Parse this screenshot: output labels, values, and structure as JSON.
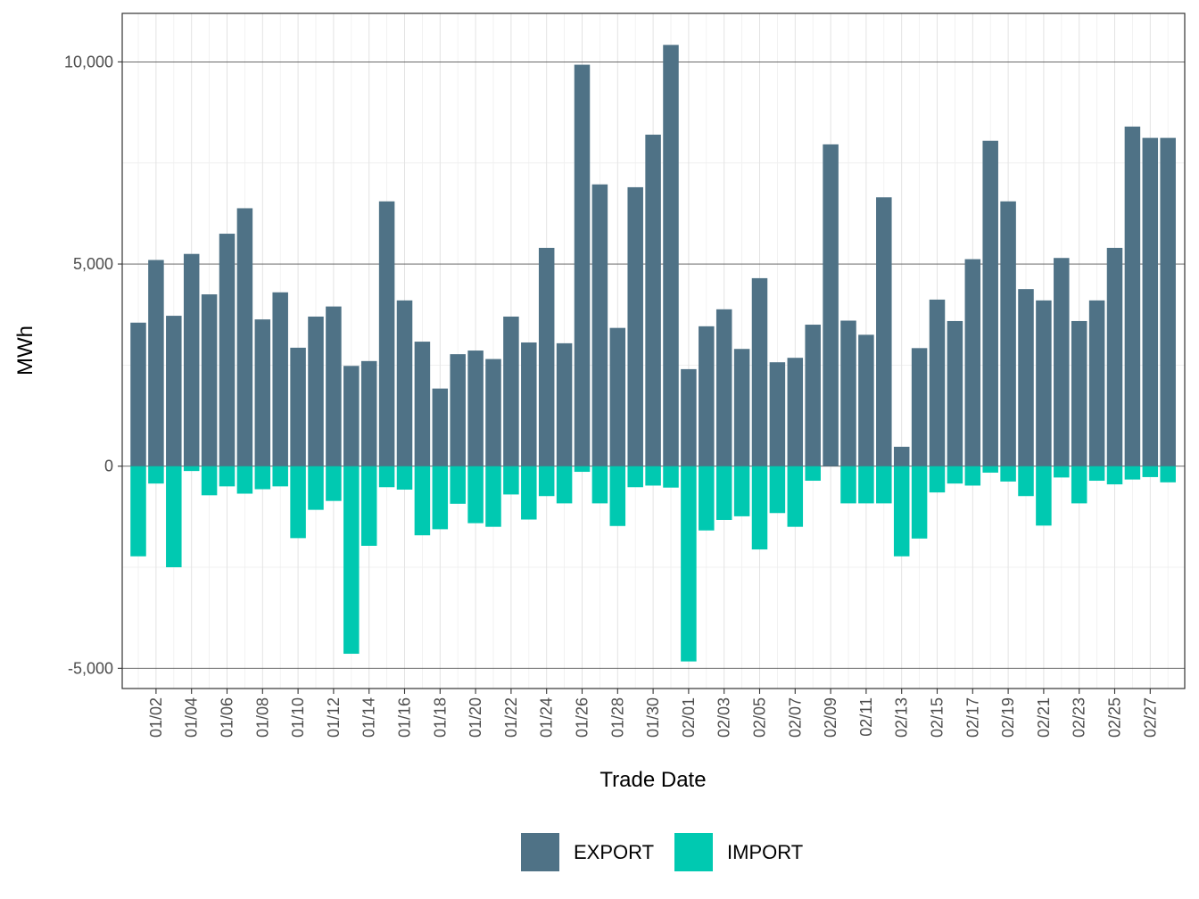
{
  "chart_data": {
    "type": "bar",
    "title": "",
    "xlabel": "Trade Date",
    "ylabel": "MWh",
    "ylim": [
      -5500,
      11200
    ],
    "y_ticks": [
      -5000,
      0,
      5000,
      10000
    ],
    "y_tick_labels": [
      "-5,000",
      "0",
      "5,000",
      "10,000"
    ],
    "grid": true,
    "stacked": true,
    "legend_position": "bottom",
    "categories": [
      "01/01",
      "01/02",
      "01/03",
      "01/04",
      "01/05",
      "01/06",
      "01/07",
      "01/08",
      "01/09",
      "01/10",
      "01/11",
      "01/12",
      "01/13",
      "01/14",
      "01/15",
      "01/16",
      "01/17",
      "01/18",
      "01/19",
      "01/20",
      "01/21",
      "01/22",
      "01/23",
      "01/24",
      "01/25",
      "01/26",
      "01/27",
      "01/28",
      "01/29",
      "01/30",
      "01/31",
      "02/01",
      "02/02",
      "02/03",
      "02/04",
      "02/05",
      "02/06",
      "02/07",
      "02/08",
      "02/09",
      "02/10",
      "02/11",
      "02/12",
      "02/13",
      "02/14",
      "02/15",
      "02/16",
      "02/17",
      "02/18",
      "02/19",
      "02/20",
      "02/21",
      "02/22",
      "02/23",
      "02/24",
      "02/25",
      "02/26",
      "02/27",
      "02/28"
    ],
    "x_tick_labels": [
      "01/02",
      "01/04",
      "01/06",
      "01/08",
      "01/10",
      "01/12",
      "01/14",
      "01/16",
      "01/18",
      "01/20",
      "01/22",
      "01/24",
      "01/26",
      "01/28",
      "01/30",
      "02/01",
      "02/03",
      "02/05",
      "02/07",
      "02/09",
      "02/11",
      "02/13",
      "02/15",
      "02/17",
      "02/19",
      "02/21",
      "02/23",
      "02/25",
      "02/27"
    ],
    "series": [
      {
        "name": "EXPORT",
        "color": "#4f7286",
        "values": [
          3550,
          5100,
          3720,
          5250,
          4250,
          5750,
          6380,
          3630,
          4300,
          2930,
          3700,
          3950,
          2480,
          2600,
          6550,
          4100,
          3080,
          1920,
          2770,
          2860,
          2650,
          3700,
          3060,
          5400,
          3040,
          9930,
          6970,
          3420,
          6900,
          8200,
          10420,
          2400,
          3460,
          3880,
          2900,
          4650,
          2570,
          2680,
          3500,
          7960,
          3600,
          3250,
          6650,
          480,
          2920,
          4120,
          3590,
          5120,
          8050,
          6550,
          4380,
          4100,
          5150,
          3590,
          4100,
          5400,
          8400,
          8120,
          8120
        ]
      },
      {
        "name": "IMPORT",
        "color": "#00c9b1",
        "values": [
          -2230,
          -430,
          -2500,
          -120,
          -720,
          -500,
          -680,
          -570,
          -500,
          -1780,
          -1080,
          -860,
          -4640,
          -1970,
          -520,
          -580,
          -1710,
          -1560,
          -930,
          -1410,
          -1500,
          -700,
          -1320,
          -740,
          -920,
          -140,
          -920,
          -1480,
          -520,
          -480,
          -530,
          -4830,
          -1590,
          -1330,
          -1240,
          -2060,
          -1160,
          -1500,
          -360,
          0,
          -920,
          -920,
          -920,
          -2230,
          -1790,
          -650,
          -430,
          -480,
          -160,
          -380,
          -740,
          -1470,
          -280,
          -920,
          -360,
          -450,
          -330,
          -270,
          -400
        ]
      }
    ]
  }
}
